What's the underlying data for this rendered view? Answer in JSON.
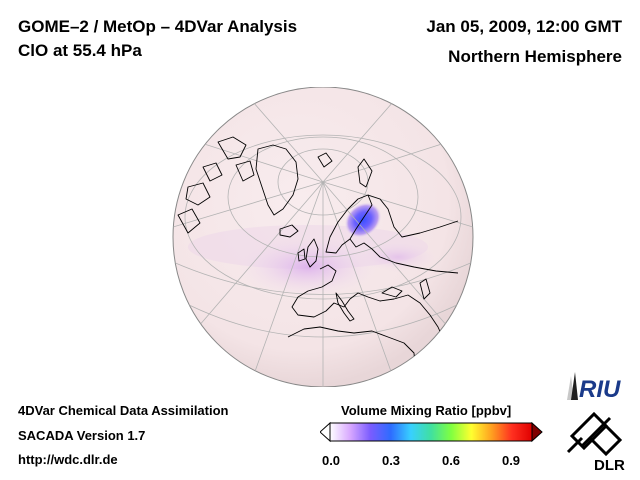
{
  "header": {
    "title_line1": "GOME–2 / MetOp – 4DVar Analysis",
    "title_line2": "ClO at 55.4 hPa",
    "date": "Jan 05, 2009, 12:00 GMT",
    "region": "Northern Hemisphere"
  },
  "footer": {
    "line1": "4DVar Chemical Data Assimilation",
    "line2": "SACADA Version 1.7",
    "line3": "http://wdc.dlr.de"
  },
  "colorbar": {
    "title": "Volume Mixing Ratio [ppbv]",
    "ticks": [
      "0.0",
      "0.3",
      "0.6",
      "0.9"
    ],
    "colors": [
      "#ffffff",
      "#d8a8ff",
      "#7a5cff",
      "#2e6cff",
      "#38d0ff",
      "#40e0a0",
      "#80ff40",
      "#ffff30",
      "#ffa020",
      "#ff3020",
      "#e00000"
    ]
  },
  "logos": {
    "riu": "RIU",
    "dlr": "DLR"
  },
  "map": {
    "projection": "orthographic",
    "background_color": "#f6e8ea",
    "coast_color": "#000000",
    "grid_color": "#b3b3b3"
  }
}
